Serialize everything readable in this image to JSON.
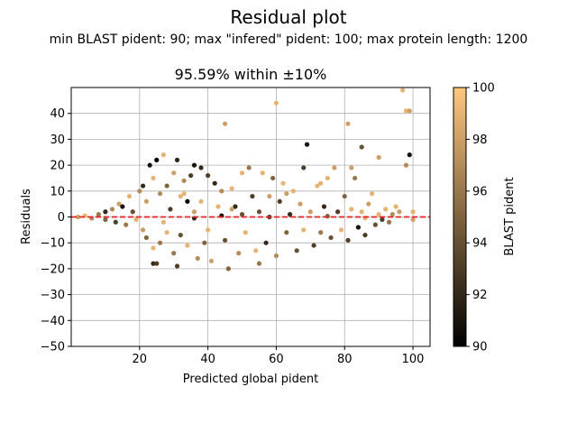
{
  "figure": {
    "suptitle": "Residual plot",
    "subtitle": "min BLAST pident: 90; max \"infered\" pident: 100; max protein length: 1200"
  },
  "chart_data": {
    "type": "scatter",
    "title": "95.59% within ±10%",
    "xlabel": "Predicted global pident",
    "ylabel": "Residuals",
    "xlim": [
      0,
      105
    ],
    "ylim": [
      -50,
      50
    ],
    "xticks": [
      20,
      40,
      60,
      80,
      100
    ],
    "yticks": [
      -50,
      -40,
      -30,
      -20,
      -10,
      0,
      10,
      20,
      30,
      40
    ],
    "grid": true,
    "reference_line": {
      "y": 0,
      "color": "#e8231f",
      "style": "dashed"
    },
    "colorbar": {
      "label": "BLAST pident",
      "min": 90,
      "max": 100,
      "ticks": [
        90,
        92,
        94,
        96,
        98,
        100
      ],
      "colormap": "copper",
      "colors": [
        "#000000",
        "#ffc77f"
      ]
    },
    "points": [
      [
        2,
        0,
        98
      ],
      [
        4,
        0.5,
        99
      ],
      [
        6,
        -0.5,
        97
      ],
      [
        8,
        1,
        96
      ],
      [
        10,
        2,
        92
      ],
      [
        10,
        -1,
        95
      ],
      [
        12,
        3,
        97
      ],
      [
        13,
        -2,
        93
      ],
      [
        14,
        5,
        98
      ],
      [
        15,
        4,
        91
      ],
      [
        16,
        -3,
        96
      ],
      [
        17,
        8,
        99
      ],
      [
        18,
        2,
        94
      ],
      [
        19,
        -1,
        99
      ],
      [
        20,
        10,
        97
      ],
      [
        21,
        12,
        92
      ],
      [
        22,
        6,
        98
      ],
      [
        22,
        -8,
        95
      ],
      [
        23,
        20,
        91
      ],
      [
        24,
        15,
        99
      ],
      [
        24,
        -18,
        92
      ],
      [
        25,
        22,
        90
      ],
      [
        25,
        -18,
        93
      ],
      [
        26,
        9,
        97
      ],
      [
        26,
        -10,
        96
      ],
      [
        27,
        24,
        99
      ],
      [
        28,
        12,
        95
      ],
      [
        28,
        -6,
        99
      ],
      [
        29,
        3,
        93
      ],
      [
        30,
        17,
        98
      ],
      [
        30,
        -14,
        96
      ],
      [
        31,
        22,
        92
      ],
      [
        32,
        8,
        99
      ],
      [
        32,
        -7,
        94
      ],
      [
        33,
        14,
        97
      ],
      [
        34,
        6,
        90
      ],
      [
        34,
        -11,
        99
      ],
      [
        35,
        16,
        93
      ],
      [
        36,
        20,
        91
      ],
      [
        36,
        2,
        98
      ],
      [
        37,
        -16,
        97
      ],
      [
        38,
        19,
        92
      ],
      [
        38,
        6,
        99
      ],
      [
        39,
        -10,
        95
      ],
      [
        40,
        16,
        93
      ],
      [
        40,
        -5,
        99
      ],
      [
        41,
        -17,
        98
      ],
      [
        42,
        13,
        92
      ],
      [
        43,
        4,
        99
      ],
      [
        44,
        10,
        97
      ],
      [
        45,
        36,
        98
      ],
      [
        45,
        -9,
        94
      ],
      [
        46,
        -20,
        95
      ],
      [
        47,
        11,
        99
      ],
      [
        48,
        4,
        92
      ],
      [
        49,
        -14,
        97
      ],
      [
        50,
        17,
        99
      ],
      [
        50,
        1,
        94
      ],
      [
        51,
        -6,
        99
      ],
      [
        52,
        19,
        96
      ],
      [
        53,
        8,
        93
      ],
      [
        54,
        -13,
        99
      ],
      [
        55,
        2,
        94
      ],
      [
        56,
        17,
        99
      ],
      [
        57,
        -10,
        92
      ],
      [
        58,
        8,
        98
      ],
      [
        59,
        15,
        95
      ],
      [
        60,
        44,
        99
      ],
      [
        60,
        -15,
        97
      ],
      [
        61,
        6,
        93
      ],
      [
        62,
        13,
        99
      ],
      [
        63,
        -6,
        95
      ],
      [
        64,
        1,
        92
      ],
      [
        65,
        10,
        99
      ],
      [
        66,
        -13,
        94
      ],
      [
        67,
        5,
        98
      ],
      [
        68,
        19,
        93
      ],
      [
        68,
        -5,
        99
      ],
      [
        69,
        28,
        91
      ],
      [
        70,
        2,
        98
      ],
      [
        71,
        -11,
        93
      ],
      [
        72,
        12,
        99
      ],
      [
        73,
        -6,
        96
      ],
      [
        74,
        4,
        92
      ],
      [
        75,
        15,
        99
      ],
      [
        76,
        -8,
        94
      ],
      [
        77,
        19,
        98
      ],
      [
        78,
        2,
        93
      ],
      [
        79,
        -5,
        99
      ],
      [
        80,
        8,
        95
      ],
      [
        81,
        36,
        98
      ],
      [
        81,
        -9,
        93
      ],
      [
        82,
        3,
        99
      ],
      [
        83,
        15,
        96
      ],
      [
        84,
        -4,
        91
      ],
      [
        85,
        27,
        94
      ],
      [
        85,
        2,
        99
      ],
      [
        86,
        -7,
        93
      ],
      [
        87,
        5,
        98
      ],
      [
        88,
        9,
        99
      ],
      [
        89,
        -3,
        94
      ],
      [
        90,
        1,
        99
      ],
      [
        90,
        23,
        98
      ],
      [
        91,
        -1,
        93
      ],
      [
        92,
        3,
        99
      ],
      [
        93,
        -2,
        96
      ],
      [
        94,
        1,
        97
      ],
      [
        95,
        4,
        99
      ],
      [
        96,
        2,
        98
      ],
      [
        97,
        49,
        99
      ],
      [
        98,
        20,
        97
      ],
      [
        98,
        41,
        99
      ],
      [
        99,
        24,
        91
      ],
      [
        99,
        41,
        98
      ],
      [
        100,
        2,
        99
      ],
      [
        100,
        -1,
        98
      ],
      [
        44,
        0.5,
        91
      ],
      [
        36,
        -0.5,
        92
      ],
      [
        58,
        0,
        93
      ],
      [
        75,
        0.3,
        95
      ],
      [
        86,
        -0.4,
        99
      ],
      [
        27,
        -2,
        99
      ],
      [
        33,
        9,
        99
      ],
      [
        47,
        3,
        98
      ],
      [
        63,
        9,
        98
      ],
      [
        73,
        13,
        99
      ],
      [
        82,
        19,
        98
      ],
      [
        55,
        -18,
        96
      ],
      [
        31,
        -19,
        93
      ],
      [
        24,
        -12,
        99
      ],
      [
        21,
        -5,
        98
      ]
    ]
  }
}
